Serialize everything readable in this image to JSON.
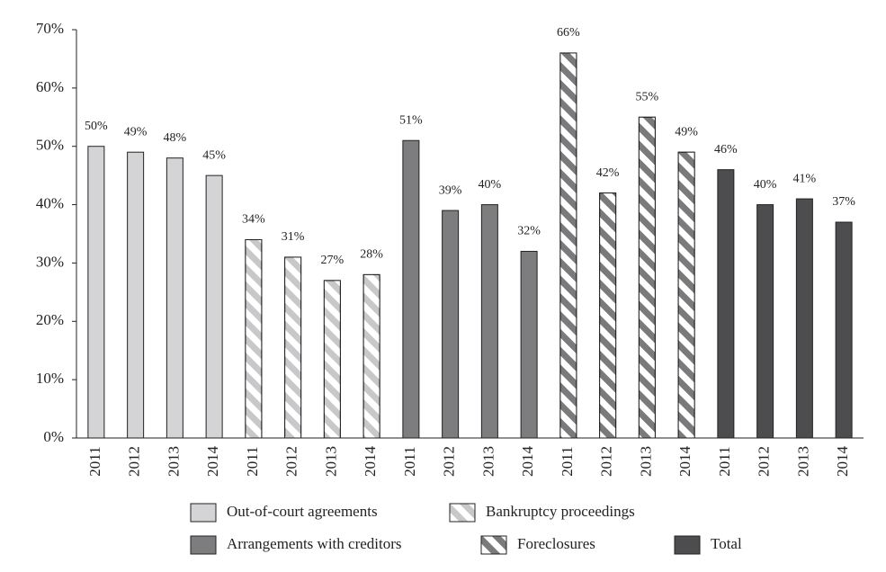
{
  "chart_data": {
    "type": "bar",
    "categories": [
      "2011",
      "2012",
      "2013",
      "2014"
    ],
    "series": [
      {
        "name": "Out-of-court agreements",
        "color": "#d4d4d6",
        "hatch": false,
        "values": [
          50,
          49,
          48,
          45
        ],
        "value_labels": [
          "50%",
          "49%",
          "48%",
          "45%"
        ]
      },
      {
        "name": "Bankruptcy proceedings",
        "color": "#c8c8ca",
        "hatch": true,
        "values": [
          34,
          31,
          27,
          28
        ],
        "value_labels": [
          "34%",
          "31%",
          "27%",
          "28%"
        ]
      },
      {
        "name": "Arrangements with creditors",
        "color": "#7d7d7f",
        "hatch": false,
        "values": [
          51,
          39,
          40,
          32
        ],
        "value_labels": [
          "51%",
          "39%",
          "40%",
          "32%"
        ]
      },
      {
        "name": "Foreclosures",
        "color": "#7a7a7c",
        "hatch": true,
        "values": [
          66,
          42,
          55,
          49
        ],
        "value_labels": [
          "66%",
          "42%",
          "55%",
          "49%"
        ]
      },
      {
        "name": "Total",
        "color": "#4d4d4f",
        "hatch": false,
        "values": [
          46,
          40,
          41,
          37
        ],
        "value_labels": [
          "46%",
          "40%",
          "41%",
          "37%"
        ]
      }
    ],
    "ylim": [
      0,
      70
    ],
    "yticks": [
      {
        "value": 0,
        "label": "0%"
      },
      {
        "value": 10,
        "label": "10%"
      },
      {
        "value": 20,
        "label": "20%"
      },
      {
        "value": 30,
        "label": "30%"
      },
      {
        "value": 40,
        "label": "40%"
      },
      {
        "value": 50,
        "label": "50%"
      },
      {
        "value": 60,
        "label": "60%"
      },
      {
        "value": 70,
        "label": "70%"
      }
    ],
    "grid": false
  }
}
